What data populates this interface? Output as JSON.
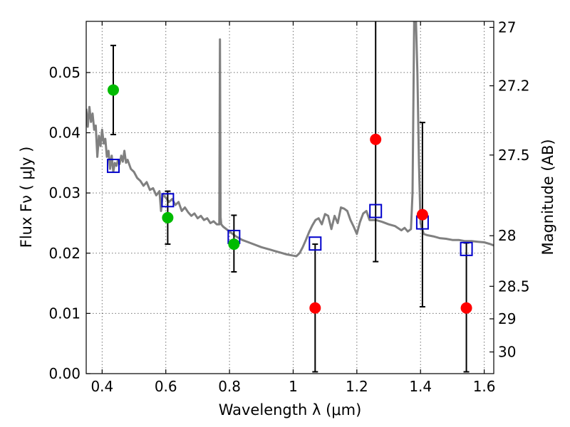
{
  "chart_data": {
    "type": "scatter",
    "xlabel": "Wavelength  λ (μm)",
    "ylabel": "Flux  Fν  ( μJy )",
    "ylabel_right": "Magnitude (AB)",
    "xlim": [
      0.35,
      1.63
    ],
    "ylim": [
      0.0,
      0.0585
    ],
    "x_ticks": [
      0.4,
      0.6,
      0.8,
      1.0,
      1.2,
      1.4,
      1.6
    ],
    "x_tick_labels": [
      "0.4",
      "0.6",
      "0.8",
      "1",
      "1.2",
      "1.4",
      "1.6"
    ],
    "y_ticks": [
      0.0,
      0.01,
      0.02,
      0.03,
      0.04,
      0.05
    ],
    "y_tick_labels": [
      "0.00",
      "0.01",
      "0.02",
      "0.03",
      "0.04",
      "0.05"
    ],
    "right_ticks": [
      {
        "flux": 0.0575,
        "label": "27"
      },
      {
        "flux": 0.0478,
        "label": "27.2"
      },
      {
        "flux": 0.0363,
        "label": "27.5"
      },
      {
        "flux": 0.0229,
        "label": "28"
      },
      {
        "flux": 0.0145,
        "label": "28.5"
      },
      {
        "flux": 0.0091,
        "label": "29"
      },
      {
        "flux": 0.0036,
        "label": "30"
      }
    ],
    "grid": true,
    "legend": "none",
    "colors": {
      "green": "#00bb00",
      "red": "#ff0000",
      "model": "#0000cc",
      "spectrum": "#808080",
      "errorbar": "#000000"
    },
    "series": [
      {
        "type": "scatter-errorbar",
        "color": "#00bb00",
        "points": [
          {
            "x": 0.435,
            "y": 0.0471,
            "yerr": [
              0.0397,
              0.0545
            ]
          },
          {
            "x": 0.606,
            "y": 0.0259,
            "yerr": [
              0.0215,
              0.0303
            ]
          },
          {
            "x": 0.814,
            "y": 0.0215,
            "yerr": [
              0.0169,
              0.0263
            ]
          }
        ]
      },
      {
        "type": "scatter-errorbar",
        "color": "#ff0000",
        "points": [
          {
            "x": 1.069,
            "y": 0.0109,
            "yerr": [
              0.0003,
              0.0215
            ]
          },
          {
            "x": 1.259,
            "y": 0.0389,
            "yerr": [
              0.0186,
              0.0592
            ]
          },
          {
            "x": 1.406,
            "y": 0.0264,
            "yerr": [
              0.0111,
              0.0417
            ]
          },
          {
            "x": 1.544,
            "y": 0.0109,
            "yerr": [
              0.0003,
              0.0217
            ]
          }
        ]
      },
      {
        "type": "model-squares",
        "color": "#0000cc",
        "points": [
          {
            "x": 0.435,
            "y": 0.0345
          },
          {
            "x": 0.606,
            "y": 0.0288
          },
          {
            "x": 0.814,
            "y": 0.0227
          },
          {
            "x": 1.069,
            "y": 0.0216
          },
          {
            "x": 1.259,
            "y": 0.027
          },
          {
            "x": 1.406,
            "y": 0.0251
          },
          {
            "x": 1.544,
            "y": 0.0207
          }
        ]
      },
      {
        "type": "line",
        "color": "#808080",
        "x": [
          0.35,
          0.355,
          0.36,
          0.365,
          0.37,
          0.375,
          0.38,
          0.385,
          0.39,
          0.395,
          0.4,
          0.405,
          0.41,
          0.415,
          0.42,
          0.425,
          0.43,
          0.435,
          0.44,
          0.445,
          0.45,
          0.455,
          0.46,
          0.465,
          0.47,
          0.475,
          0.48,
          0.49,
          0.5,
          0.51,
          0.52,
          0.53,
          0.54,
          0.55,
          0.56,
          0.57,
          0.58,
          0.585,
          0.59,
          0.6,
          0.61,
          0.62,
          0.63,
          0.64,
          0.65,
          0.66,
          0.67,
          0.68,
          0.69,
          0.7,
          0.71,
          0.72,
          0.73,
          0.74,
          0.75,
          0.76,
          0.768,
          0.77,
          0.772,
          0.774,
          0.78,
          0.8,
          0.82,
          0.84,
          0.86,
          0.88,
          0.9,
          0.92,
          0.94,
          0.96,
          0.98,
          1.0,
          1.01,
          1.02,
          1.03,
          1.04,
          1.05,
          1.06,
          1.07,
          1.08,
          1.09,
          1.1,
          1.11,
          1.12,
          1.13,
          1.14,
          1.15,
          1.16,
          1.17,
          1.18,
          1.19,
          1.2,
          1.21,
          1.22,
          1.23,
          1.24,
          1.26,
          1.28,
          1.3,
          1.32,
          1.34,
          1.35,
          1.36,
          1.37,
          1.375,
          1.38,
          1.385,
          1.39,
          1.395,
          1.4,
          1.41,
          1.42,
          1.44,
          1.46,
          1.48,
          1.5,
          1.52,
          1.54,
          1.56,
          1.58,
          1.6,
          1.62,
          1.63
        ],
        "y": [
          0.044,
          0.041,
          0.0443,
          0.0418,
          0.0432,
          0.0405,
          0.0412,
          0.036,
          0.0395,
          0.0378,
          0.0405,
          0.0382,
          0.039,
          0.036,
          0.037,
          0.034,
          0.0362,
          0.0335,
          0.035,
          0.0345,
          0.0355,
          0.0348,
          0.0362,
          0.0352,
          0.037,
          0.035,
          0.0355,
          0.034,
          0.0335,
          0.0325,
          0.032,
          0.0312,
          0.0318,
          0.0305,
          0.0308,
          0.0296,
          0.0303,
          0.027,
          0.0298,
          0.0292,
          0.0285,
          0.029,
          0.028,
          0.0285,
          0.027,
          0.0276,
          0.0268,
          0.0262,
          0.0266,
          0.0258,
          0.0262,
          0.0255,
          0.0258,
          0.025,
          0.0253,
          0.0248,
          0.0248,
          0.0555,
          0.026,
          0.0248,
          0.0244,
          0.0236,
          0.0228,
          0.0222,
          0.0218,
          0.0214,
          0.021,
          0.0207,
          0.0204,
          0.0201,
          0.0198,
          0.0196,
          0.0195,
          0.02,
          0.021,
          0.0222,
          0.0235,
          0.0246,
          0.0255,
          0.0258,
          0.0248,
          0.0265,
          0.0262,
          0.024,
          0.0262,
          0.025,
          0.0276,
          0.0274,
          0.027,
          0.0255,
          0.0244,
          0.0232,
          0.0252,
          0.0266,
          0.027,
          0.0255,
          0.0255,
          0.0252,
          0.0248,
          0.0245,
          0.0238,
          0.0242,
          0.0236,
          0.024,
          0.03,
          0.0585,
          0.06,
          0.05,
          0.035,
          0.025,
          0.0232,
          0.023,
          0.0228,
          0.0225,
          0.0224,
          0.0222,
          0.0222,
          0.022,
          0.022,
          0.0219,
          0.0218,
          0.0215,
          0.0213
        ]
      }
    ]
  }
}
